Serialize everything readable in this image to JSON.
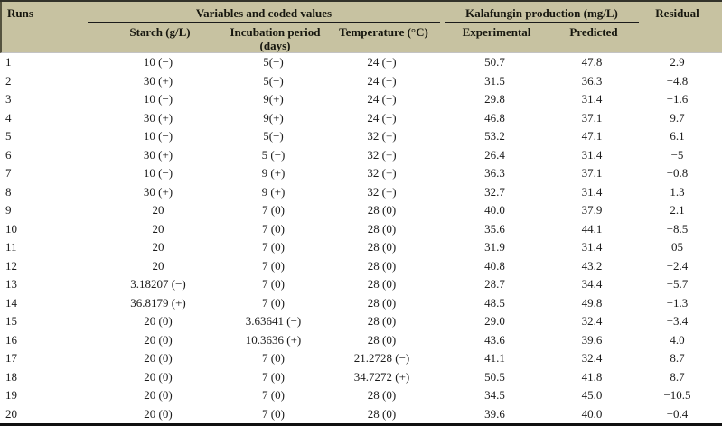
{
  "colors": {
    "header_bg": "#c7c2a1",
    "rule_color": "#1a1a1a",
    "top_border": "#32322a",
    "bottom_border": "#101010",
    "header_divider": "#c3c3c3",
    "text": "#1b1b1b"
  },
  "header": {
    "runs": "Runs",
    "variables_group": "Variables and coded values",
    "production_group": "Kalafungin production (mg/L)",
    "residual": "Residual",
    "starch": "Starch (g/L)",
    "incubation_line1": "Incubation period",
    "incubation_line2": "(days)",
    "temperature": "Temperature (°C)",
    "experimental": "Experimental",
    "predicted": "Predicted"
  },
  "column_keys": [
    "runs",
    "starch",
    "incubation-period",
    "temperature",
    "experimental",
    "predicted",
    "residual"
  ],
  "table": {
    "rows": [
      [
        "1",
        "10 (−)",
        "5(−)",
        "24 (−)",
        "50.7",
        "47.8",
        "2.9"
      ],
      [
        "2",
        "30 (+)",
        "5(−)",
        "24 (−)",
        "31.5",
        "36.3",
        "−4.8"
      ],
      [
        "3",
        "10 (−)",
        "9(+)",
        "24 (−)",
        "29.8",
        "31.4",
        "−1.6"
      ],
      [
        "4",
        "30 (+)",
        "9(+)",
        "24 (−)",
        "46.8",
        "37.1",
        "9.7"
      ],
      [
        "5",
        "10 (−)",
        "5(−)",
        "32 (+)",
        "53.2",
        "47.1",
        "6.1"
      ],
      [
        "6",
        "30 (+)",
        "5 (−)",
        "32 (+)",
        "26.4",
        "31.4",
        "−5"
      ],
      [
        "7",
        "10 (−)",
        "9 (+)",
        "32 (+)",
        "36.3",
        "37.1",
        "−0.8"
      ],
      [
        "8",
        "30 (+)",
        "9 (+)",
        "32 (+)",
        "32.7",
        "31.4",
        "1.3"
      ],
      [
        "9",
        "20",
        "7 (0)",
        "28 (0)",
        "40.0",
        "37.9",
        "2.1"
      ],
      [
        "10",
        "20",
        "7 (0)",
        "28 (0)",
        "35.6",
        "44.1",
        "−8.5"
      ],
      [
        "11",
        "20",
        "7 (0)",
        "28 (0)",
        "31.9",
        "31.4",
        "05"
      ],
      [
        "12",
        "20",
        "7 (0)",
        "28 (0)",
        "40.8",
        "43.2",
        "−2.4"
      ],
      [
        "13",
        "3.18207 (−)",
        "7 (0)",
        "28 (0)",
        "28.7",
        "34.4",
        "−5.7"
      ],
      [
        "14",
        "36.8179 (+)",
        "7 (0)",
        "28 (0)",
        "48.5",
        "49.8",
        "−1.3"
      ],
      [
        "15",
        "20 (0)",
        "3.63641 (−)",
        "28 (0)",
        "29.0",
        "32.4",
        "−3.4"
      ],
      [
        "16",
        "20 (0)",
        "10.3636 (+)",
        "28 (0)",
        "43.6",
        "39.6",
        "4.0"
      ],
      [
        "17",
        "20 (0)",
        "7 (0)",
        "21.2728 (−)",
        "41.1",
        "32.4",
        "8.7"
      ],
      [
        "18",
        "20 (0)",
        "7 (0)",
        "34.7272 (+)",
        "50.5",
        "41.8",
        "8.7"
      ],
      [
        "19",
        "20 (0)",
        "7 (0)",
        "28 (0)",
        "34.5",
        "45.0",
        "−10.5"
      ],
      [
        "20",
        "20 (0)",
        "7 (0)",
        "28 (0)",
        "39.6",
        "40.0",
        "−0.4"
      ]
    ]
  }
}
